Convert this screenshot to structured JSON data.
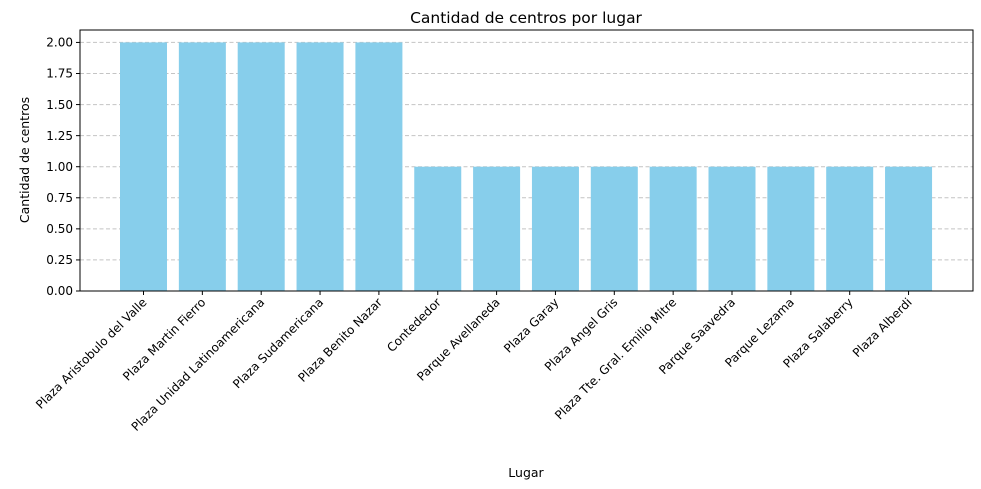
{
  "chart_data": {
    "type": "bar",
    "title": "Cantidad de centros por lugar",
    "xlabel": "Lugar",
    "ylabel": "Cantidad de centros",
    "categories": [
      "Plaza Aristobulo del Valle",
      "Plaza Martin Fierro",
      "Plaza Unidad Latinoamericana",
      "Plaza Sudamericana",
      "Plaza Benito Nazar",
      "Contededor",
      "Parque Avellaneda",
      "Plaza Garay",
      "Plaza Angel Gris",
      "Plaza Tte. Gral. Emilio Mitre",
      "Parque Saavedra",
      "Parque Lezama",
      "Plaza Salaberry",
      "Plaza Alberdi"
    ],
    "values": [
      2,
      2,
      2,
      2,
      2,
      1,
      1,
      1,
      1,
      1,
      1,
      1,
      1,
      1
    ],
    "ylim": [
      0,
      2.1
    ],
    "yticks": [
      "0.00",
      "0.25",
      "0.50",
      "0.75",
      "1.00",
      "1.25",
      "1.50",
      "1.75",
      "2.00"
    ],
    "grid": "y-dashed",
    "bar_color": "#87ceeb",
    "grid_color": "#c4c4c4"
  }
}
